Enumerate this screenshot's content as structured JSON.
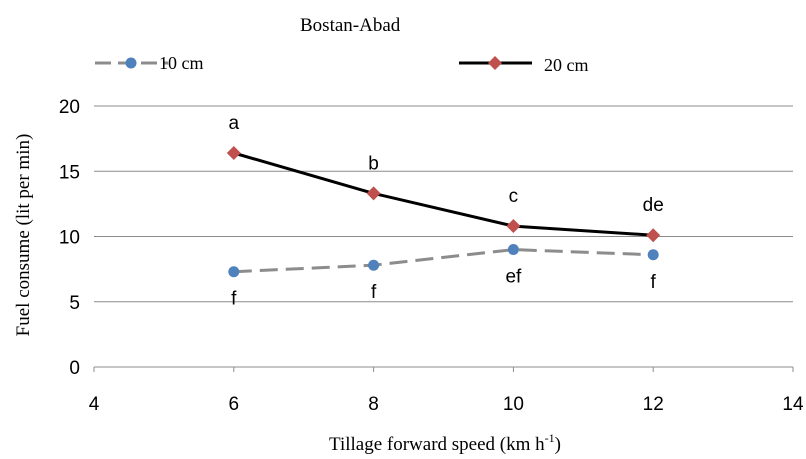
{
  "chart_data": {
    "type": "line",
    "title": "Bostan-Abad",
    "xlabel": "Tillage forward speed (km h",
    "xlabel_sup": "-1",
    "xlabel_end": ")",
    "ylabel": "Fuel consume (lit per min)",
    "xlim": [
      4,
      14
    ],
    "ylim": [
      0,
      20
    ],
    "xticks": [
      4,
      6,
      8,
      10,
      12,
      14
    ],
    "yticks": [
      0,
      5,
      10,
      15,
      20
    ],
    "grid": "horizontal",
    "legend_position": "top",
    "series": [
      {
        "name": "10 cm",
        "color": "#8c8c8c",
        "marker_color": "#4f81bd",
        "marker": "circle",
        "line_style": "dashed",
        "x": [
          6,
          8,
          10,
          12
        ],
        "y": [
          7.3,
          7.8,
          9.0,
          8.6
        ],
        "labels": [
          "f",
          "f",
          "ef",
          "f"
        ],
        "label_position": "below"
      },
      {
        "name": "20 cm",
        "color": "#000000",
        "marker_color": "#c0504d",
        "marker": "diamond",
        "line_style": "solid",
        "x": [
          6,
          8,
          10,
          12
        ],
        "y": [
          16.4,
          13.3,
          10.8,
          10.1
        ],
        "labels": [
          "a",
          "b",
          "c",
          "de"
        ],
        "label_position": "above"
      }
    ]
  }
}
